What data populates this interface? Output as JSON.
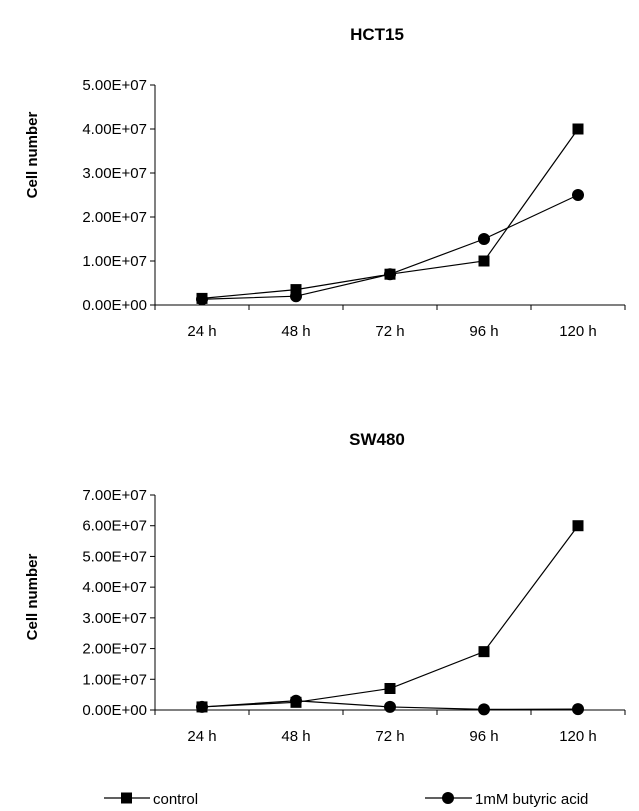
{
  "chart_data": [
    {
      "type": "line",
      "title": "HCT15",
      "xlabel": "",
      "ylabel": "Cell number",
      "categories": [
        "24 h",
        "48 h",
        "72 h",
        "96 h",
        "120 h"
      ],
      "yticks": [
        "0.00E+00",
        "1.00E+07",
        "2.00E+07",
        "3.00E+07",
        "4.00E+07",
        "5.00E+07"
      ],
      "ylim": [
        0,
        50000000
      ],
      "grid": false,
      "series": [
        {
          "name": "control",
          "marker": "square",
          "values": [
            1500000,
            3500000,
            7000000,
            10000000,
            40000000
          ]
        },
        {
          "name": "1mM butyric acid",
          "marker": "circle",
          "values": [
            1300000,
            2000000,
            7000000,
            15000000,
            25000000
          ]
        }
      ]
    },
    {
      "type": "line",
      "title": "SW480",
      "xlabel": "",
      "ylabel": "Cell number",
      "categories": [
        "24 h",
        "48 h",
        "72 h",
        "96 h",
        "120 h"
      ],
      "yticks": [
        "0.00E+00",
        "1.00E+07",
        "2.00E+07",
        "3.00E+07",
        "4.00E+07",
        "5.00E+07",
        "6.00E+07",
        "7.00E+07"
      ],
      "ylim": [
        0,
        70000000
      ],
      "grid": false,
      "series": [
        {
          "name": "control",
          "marker": "square",
          "values": [
            1000000,
            2500000,
            7000000,
            19000000,
            60000000
          ]
        },
        {
          "name": "1mM butyric acid",
          "marker": "circle",
          "values": [
            1000000,
            3000000,
            1000000,
            200000,
            300000
          ]
        }
      ]
    }
  ],
  "legend": {
    "placement": "bottom",
    "items": [
      {
        "label": "control",
        "marker": "square"
      },
      {
        "label": "1mM butyric acid",
        "marker": "circle"
      }
    ]
  }
}
